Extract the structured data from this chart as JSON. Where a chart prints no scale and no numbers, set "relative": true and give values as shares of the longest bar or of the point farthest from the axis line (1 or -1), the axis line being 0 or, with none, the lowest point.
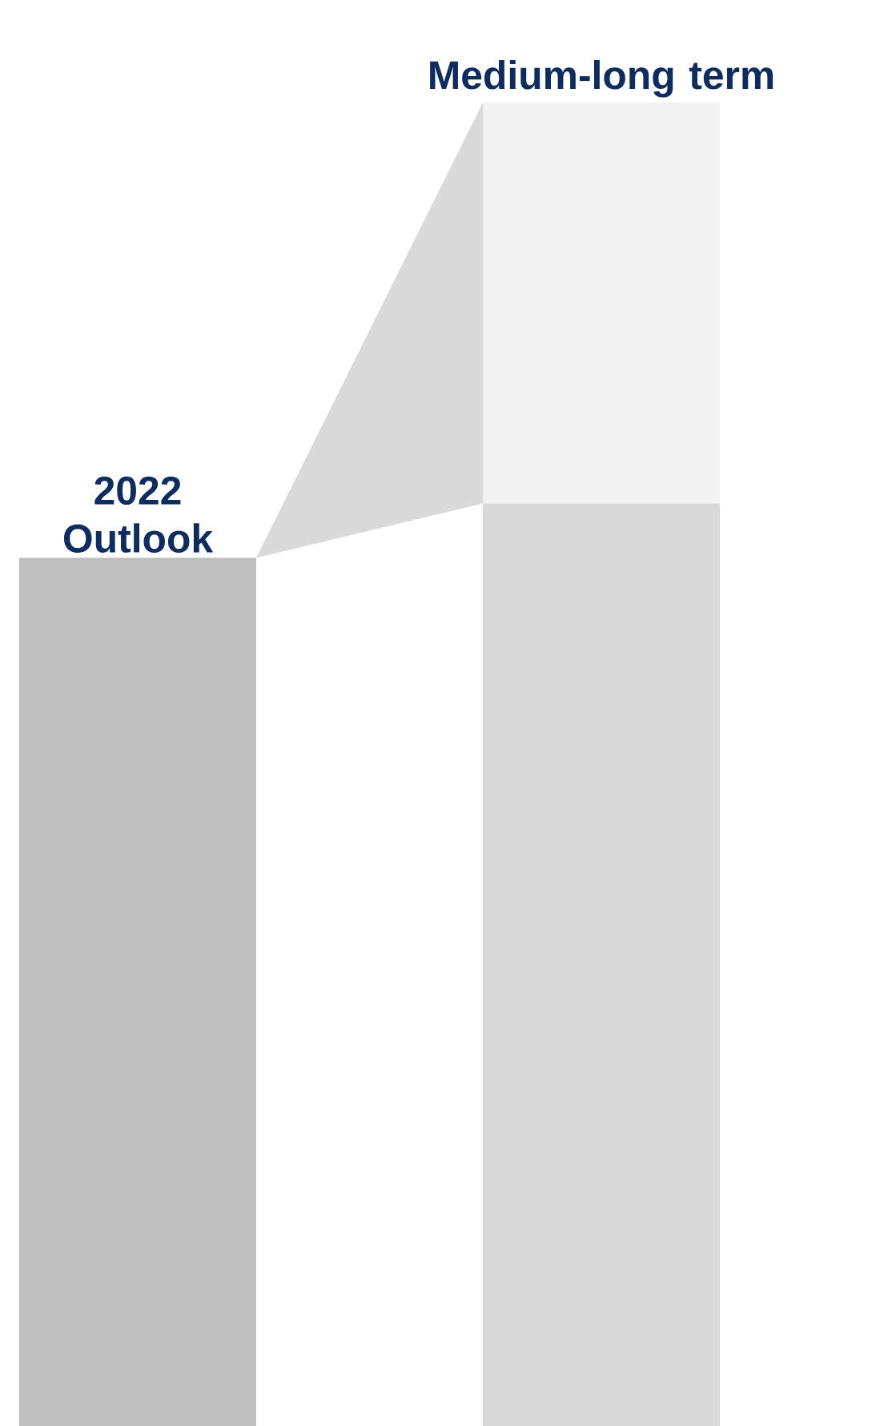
{
  "chart_data": {
    "type": "bar",
    "relative": true,
    "stacked": true,
    "categories": [
      "2022 Outlook",
      "Medium-long term"
    ],
    "series": [
      {
        "colors": [
          "#bfbfbf",
          "#d9d9d9"
        ],
        "values": [
          0.656,
          0.697
        ]
      },
      {
        "color": "#f2f2f2",
        "values": [
          null,
          0.303
        ]
      }
    ]
  }
}
